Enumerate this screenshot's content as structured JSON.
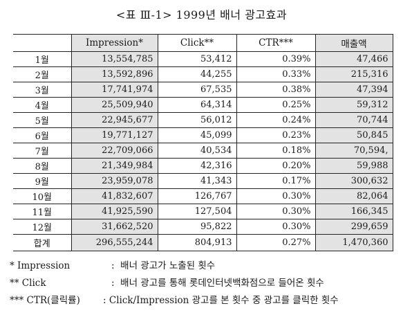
{
  "title": "<표 Ⅲ-1> 1999년 배너 광고효과",
  "table": {
    "headers": [
      "",
      "Impression*",
      "Click**",
      "CTR***",
      "매출액"
    ],
    "rows": [
      {
        "month": "1월",
        "impression": "13,554,785",
        "click": "53,412",
        "ctr": "0.39%",
        "sales": "47,466"
      },
      {
        "month": "2월",
        "impression": "13,592,896",
        "click": "44,255",
        "ctr": "0.33%",
        "sales": "215,316"
      },
      {
        "month": "3월",
        "impression": "17,741,974",
        "click": "67,535",
        "ctr": "0.38%",
        "sales": "47,394"
      },
      {
        "month": "4월",
        "impression": "25,509,940",
        "click": "64,314",
        "ctr": "0.25%",
        "sales": "59,312"
      },
      {
        "month": "5월",
        "impression": "22,945,677",
        "click": "56,012",
        "ctr": "0.24%",
        "sales": "70,744"
      },
      {
        "month": "6월",
        "impression": "19,771,127",
        "click": "45,099",
        "ctr": "0.23%",
        "sales": "50,845"
      },
      {
        "month": "7월",
        "impression": "22,709,066",
        "click": "40,534",
        "ctr": "0.18%",
        "sales": "70,594,"
      },
      {
        "month": "8월",
        "impression": "21,349,984",
        "click": "42,316",
        "ctr": "0.20%",
        "sales": "59,988"
      },
      {
        "month": "9월",
        "impression": "23,959,078",
        "click": "41,343",
        "ctr": "0.17%",
        "sales": "300,632"
      },
      {
        "month": "10월",
        "impression": "41,832,607",
        "click": "126,767",
        "ctr": "0.30%",
        "sales": "82,064"
      },
      {
        "month": "11월",
        "impression": "41,925,590",
        "click": "127,504",
        "ctr": "0.30%",
        "sales": "166,345"
      },
      {
        "month": "12월",
        "impression": "31,662,520",
        "click": "95,822",
        "ctr": "0.30%",
        "sales": "299,659"
      }
    ],
    "total": {
      "month": "합계",
      "impression": "296,555,244",
      "click": "804,913",
      "ctr": "0.27%",
      "sales": "1,470,360"
    }
  },
  "notes": [
    {
      "key": "* Impression",
      "sep": ":",
      "text": "배너 광고가 노출된 횟수"
    },
    {
      "key": "** Click",
      "sep": ":",
      "text": "배너 광고를 통해 롯데인터넷백화점으로 들어온 횟수"
    },
    {
      "key": "*** CTR(클릭률)",
      "sep": ":",
      "text": "Click/Impression 광고를 본 횟수 중 광고를 클릭한 횟수"
    }
  ]
}
